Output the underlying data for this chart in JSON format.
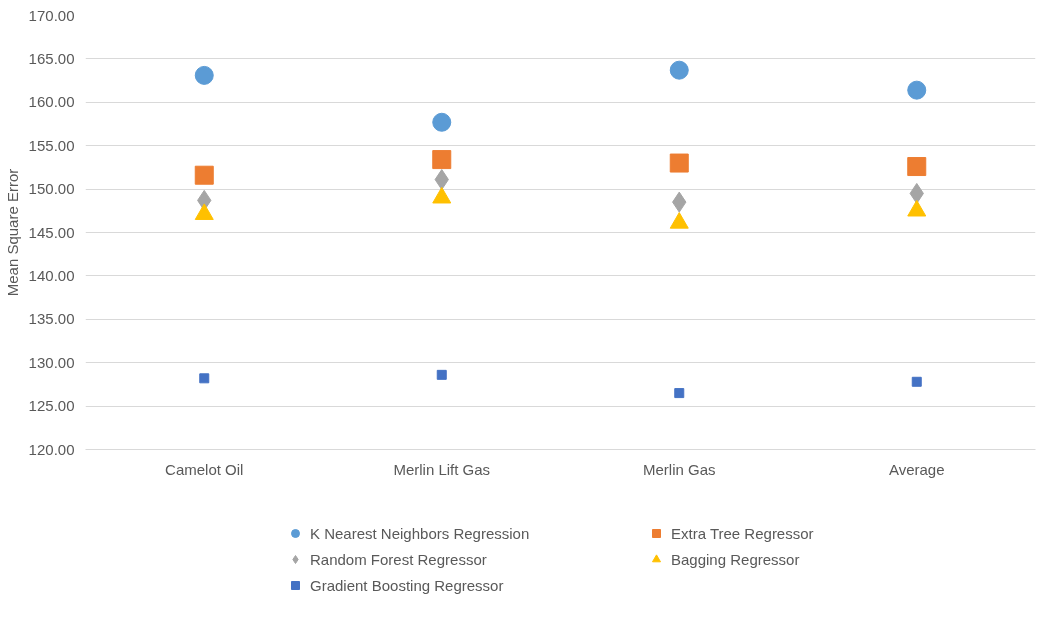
{
  "chart_data": {
    "type": "scatter",
    "ylabel": "Mean Square Error",
    "categories": [
      "Camelot Oil",
      "Merlin Lift Gas",
      "Merlin Gas",
      "Average"
    ],
    "ylim": [
      120,
      170
    ],
    "yticks": [
      {
        "value": 120,
        "label": "120.00"
      },
      {
        "value": 125,
        "label": "125.00"
      },
      {
        "value": 130,
        "label": "130.00"
      },
      {
        "value": 135,
        "label": "135.00"
      },
      {
        "value": 140,
        "label": "140.00"
      },
      {
        "value": 145,
        "label": "145.00"
      },
      {
        "value": 150,
        "label": "150.00"
      },
      {
        "value": 155,
        "label": "155.00"
      },
      {
        "value": 160,
        "label": "160.00"
      },
      {
        "value": 165,
        "label": "165.00"
      },
      {
        "value": 170,
        "label": "170.00"
      }
    ],
    "grid": "y",
    "legend": "bottom",
    "series": [
      {
        "name": "K Nearest Neighbors Regression",
        "color": "#5b9bd5",
        "marker": "circle",
        "values": [
          163.1,
          157.7,
          163.7,
          161.4
        ]
      },
      {
        "name": "Extra Tree Regressor",
        "color": "#ed7d31",
        "marker": "square",
        "values": [
          151.6,
          153.4,
          153.0,
          152.6
        ]
      },
      {
        "name": "Random Forest Regressor",
        "color": "#a5a5a5",
        "marker": "diamond",
        "values": [
          148.7,
          151.1,
          148.5,
          149.5
        ]
      },
      {
        "name": "Bagging Regressor",
        "color": "#ffc000",
        "marker": "triangle",
        "values": [
          147.1,
          149.0,
          146.1,
          147.5
        ]
      },
      {
        "name": "Gradient Boosting Regressor",
        "color": "#4472c4",
        "marker": "square",
        "values": [
          128.2,
          128.6,
          126.5,
          127.8
        ]
      }
    ]
  }
}
